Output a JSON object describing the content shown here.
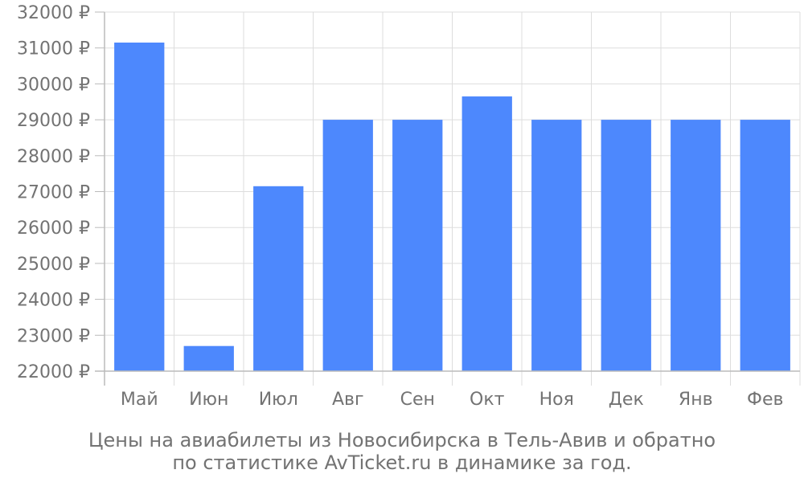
{
  "chart_data": {
    "type": "bar",
    "categories": [
      "Май",
      "Июн",
      "Июл",
      "Авг",
      "Сен",
      "Окт",
      "Ноя",
      "Дек",
      "Янв",
      "Фев"
    ],
    "values": [
      31150,
      22700,
      27150,
      29000,
      29000,
      29650,
      29000,
      29000,
      29000,
      29000
    ],
    "ylim": [
      22000,
      32000
    ],
    "y_ticks": [
      22000,
      23000,
      24000,
      25000,
      26000,
      27000,
      28000,
      29000,
      30000,
      31000,
      32000
    ],
    "y_tick_labels": [
      "22000 ₽",
      "23000 ₽",
      "24000 ₽",
      "25000 ₽",
      "26000 ₽",
      "27000 ₽",
      "28000 ₽",
      "29000 ₽",
      "30000 ₽",
      "31000 ₽",
      "32000 ₽"
    ],
    "grid": true,
    "colors": {
      "bar": "#4d88fd",
      "grid": "#dddddd",
      "axis": "#bbbbbb",
      "text": "#737373"
    }
  },
  "caption": {
    "line1": "Цены на авиабилеты из Новосибирска в Тель-Авив и обратно",
    "line2": "по статистике AvTicket.ru в динамике за год."
  }
}
